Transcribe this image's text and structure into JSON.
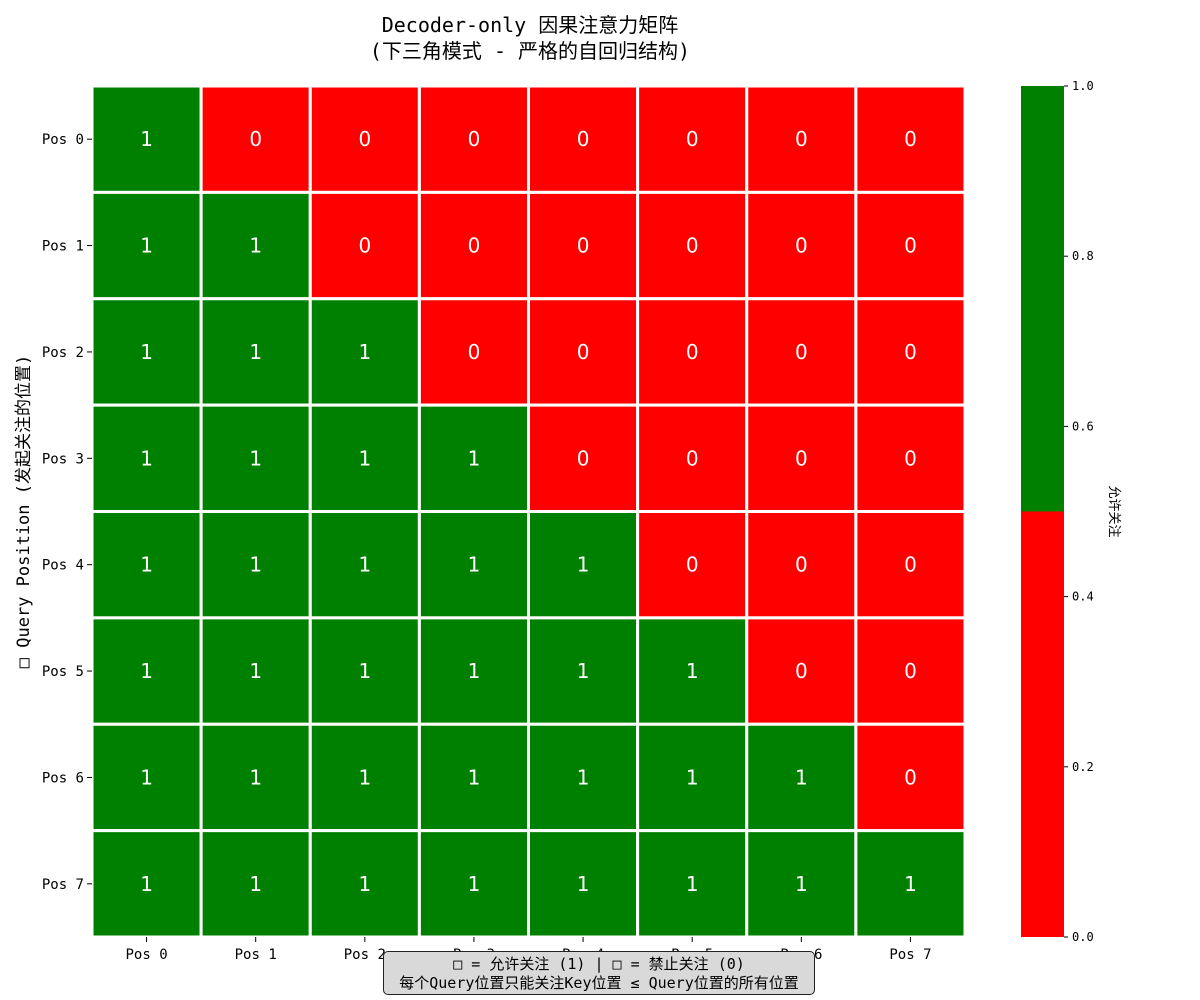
{
  "chart_data": {
    "type": "heatmap",
    "title_line1": "Decoder-only 因果注意力矩阵",
    "title_line2": "(下三角模式 - 严格的自回归结构)",
    "ylabel": "□ Query Position (发起关注的位置)",
    "xlabel": "",
    "x_categories": [
      "Pos 0",
      "Pos 1",
      "Pos 2",
      "Pos 3",
      "Pos 4",
      "Pos 5",
      "Pos 6",
      "Pos 7"
    ],
    "y_categories": [
      "Pos 0",
      "Pos 1",
      "Pos 2",
      "Pos 3",
      "Pos 4",
      "Pos 5",
      "Pos 6",
      "Pos 7"
    ],
    "matrix": [
      [
        1,
        0,
        0,
        0,
        0,
        0,
        0,
        0
      ],
      [
        1,
        1,
        0,
        0,
        0,
        0,
        0,
        0
      ],
      [
        1,
        1,
        1,
        0,
        0,
        0,
        0,
        0
      ],
      [
        1,
        1,
        1,
        1,
        0,
        0,
        0,
        0
      ],
      [
        1,
        1,
        1,
        1,
        1,
        0,
        0,
        0
      ],
      [
        1,
        1,
        1,
        1,
        1,
        1,
        0,
        0
      ],
      [
        1,
        1,
        1,
        1,
        1,
        1,
        1,
        0
      ],
      [
        1,
        1,
        1,
        1,
        1,
        1,
        1,
        1
      ]
    ],
    "colors": {
      "allowed": "#008000",
      "masked": "#ff0000"
    },
    "colorbar": {
      "label": "允许关注",
      "range": [
        0,
        1
      ],
      "ticks": [
        "0.0",
        "0.2",
        "0.4",
        "0.6",
        "0.8",
        "1.0"
      ],
      "threshold": 0.5
    },
    "legend_text_line1": "□ = 允许关注 (1)  |  □ = 禁止关注 (0)",
    "legend_text_line2": "每个Query位置只能关注Key位置 ≤ Query位置的所有位置"
  }
}
